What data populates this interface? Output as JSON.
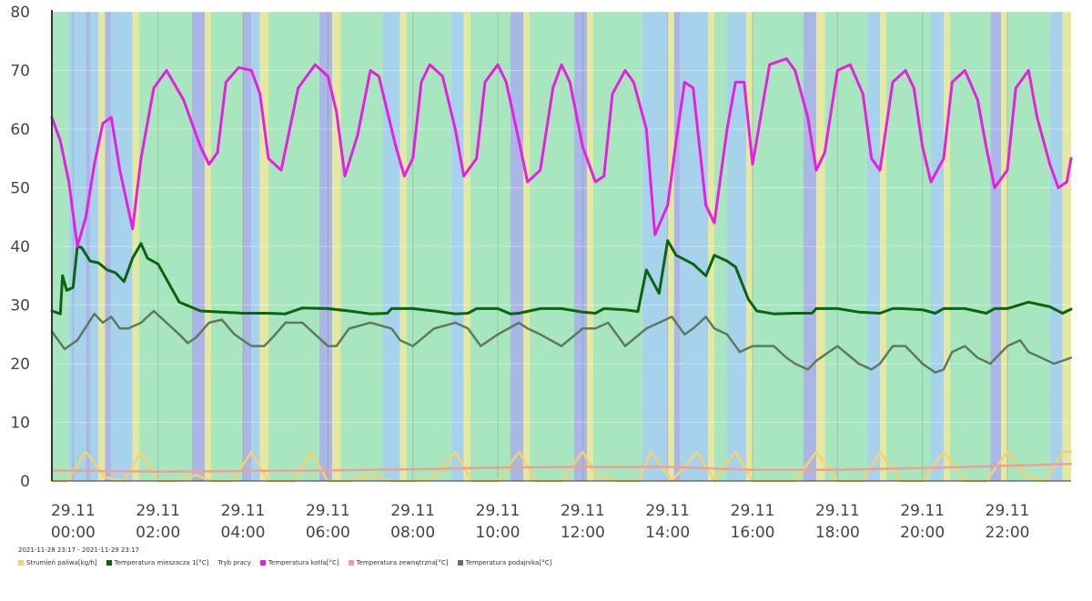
{
  "chart_data": {
    "type": "line",
    "title": "",
    "date_range": "2021-11-28 23:17 - 2021-11-29 23:17",
    "xlabel": "",
    "ylabel": "",
    "ylim": [
      0,
      80
    ],
    "xlim_hours": [
      -0.5,
      23.5
    ],
    "y_ticks": [
      "0",
      "10",
      "20",
      "30",
      "40",
      "50",
      "60",
      "70",
      "80"
    ],
    "x_ticks": [
      {
        "hour": 0,
        "day": "29.11",
        "time": "00:00"
      },
      {
        "hour": 2,
        "day": "29.11",
        "time": "02:00"
      },
      {
        "hour": 4,
        "day": "29.11",
        "time": "04:00"
      },
      {
        "hour": 6,
        "day": "29.11",
        "time": "06:00"
      },
      {
        "hour": 8,
        "day": "29.11",
        "time": "08:00"
      },
      {
        "hour": 10,
        "day": "29.11",
        "time": "10:00"
      },
      {
        "hour": 12,
        "day": "29.11",
        "time": "12:00"
      },
      {
        "hour": 14,
        "day": "29.11",
        "time": "14:00"
      },
      {
        "hour": 16,
        "day": "29.11",
        "time": "16:00"
      },
      {
        "hour": 18,
        "day": "29.11",
        "time": "18:00"
      },
      {
        "hour": 20,
        "day": "29.11",
        "time": "20:00"
      },
      {
        "hour": 22,
        "day": "29.11",
        "time": "22:00"
      }
    ],
    "mode_colors": {
      "work": "#a8e6bf",
      "idle": "#a7d2ec",
      "ignition": "#e6e8a0",
      "pause": "#a9b6e6"
    },
    "work_mode_bands": [
      {
        "start": -0.5,
        "end": -0.1,
        "mode": "work"
      },
      {
        "start": -0.1,
        "end": 0.3,
        "mode": "idle"
      },
      {
        "start": 0.3,
        "end": 0.4,
        "mode": "pause"
      },
      {
        "start": 0.4,
        "end": 0.6,
        "mode": "idle"
      },
      {
        "start": 0.6,
        "end": 0.75,
        "mode": "ignition"
      },
      {
        "start": 0.75,
        "end": 0.9,
        "mode": "pause"
      },
      {
        "start": 0.9,
        "end": 1.4,
        "mode": "idle"
      },
      {
        "start": 1.4,
        "end": 1.55,
        "mode": "ignition"
      },
      {
        "start": 1.55,
        "end": 2.8,
        "mode": "work"
      },
      {
        "start": 2.8,
        "end": 3.1,
        "mode": "pause"
      },
      {
        "start": 3.1,
        "end": 3.25,
        "mode": "ignition"
      },
      {
        "start": 3.25,
        "end": 4.0,
        "mode": "work"
      },
      {
        "start": 4.0,
        "end": 4.2,
        "mode": "pause"
      },
      {
        "start": 4.2,
        "end": 4.4,
        "mode": "idle"
      },
      {
        "start": 4.4,
        "end": 4.6,
        "mode": "ignition"
      },
      {
        "start": 4.6,
        "end": 5.8,
        "mode": "work"
      },
      {
        "start": 5.8,
        "end": 6.1,
        "mode": "pause"
      },
      {
        "start": 6.1,
        "end": 6.3,
        "mode": "ignition"
      },
      {
        "start": 6.3,
        "end": 7.3,
        "mode": "work"
      },
      {
        "start": 7.3,
        "end": 7.7,
        "mode": "idle"
      },
      {
        "start": 7.7,
        "end": 7.85,
        "mode": "ignition"
      },
      {
        "start": 7.85,
        "end": 8.9,
        "mode": "work"
      },
      {
        "start": 8.9,
        "end": 9.2,
        "mode": "idle"
      },
      {
        "start": 9.2,
        "end": 9.35,
        "mode": "ignition"
      },
      {
        "start": 9.35,
        "end": 10.3,
        "mode": "work"
      },
      {
        "start": 10.3,
        "end": 10.6,
        "mode": "pause"
      },
      {
        "start": 10.6,
        "end": 10.75,
        "mode": "ignition"
      },
      {
        "start": 10.75,
        "end": 11.8,
        "mode": "work"
      },
      {
        "start": 11.8,
        "end": 12.1,
        "mode": "pause"
      },
      {
        "start": 12.1,
        "end": 12.25,
        "mode": "ignition"
      },
      {
        "start": 12.25,
        "end": 13.4,
        "mode": "work"
      },
      {
        "start": 13.4,
        "end": 14.0,
        "mode": "idle"
      },
      {
        "start": 14.0,
        "end": 14.15,
        "mode": "ignition"
      },
      {
        "start": 14.15,
        "end": 14.3,
        "mode": "pause"
      },
      {
        "start": 14.3,
        "end": 14.5,
        "mode": "idle"
      },
      {
        "start": 14.5,
        "end": 14.95,
        "mode": "idle"
      },
      {
        "start": 14.95,
        "end": 15.1,
        "mode": "ignition"
      },
      {
        "start": 15.1,
        "end": 15.4,
        "mode": "work"
      },
      {
        "start": 15.4,
        "end": 15.85,
        "mode": "idle"
      },
      {
        "start": 15.85,
        "end": 16.0,
        "mode": "ignition"
      },
      {
        "start": 16.0,
        "end": 17.2,
        "mode": "work"
      },
      {
        "start": 17.2,
        "end": 17.5,
        "mode": "pause"
      },
      {
        "start": 17.5,
        "end": 17.7,
        "mode": "ignition"
      },
      {
        "start": 17.7,
        "end": 18.7,
        "mode": "work"
      },
      {
        "start": 18.7,
        "end": 19.0,
        "mode": "idle"
      },
      {
        "start": 19.0,
        "end": 19.15,
        "mode": "ignition"
      },
      {
        "start": 19.15,
        "end": 20.2,
        "mode": "work"
      },
      {
        "start": 20.2,
        "end": 20.5,
        "mode": "idle"
      },
      {
        "start": 20.5,
        "end": 20.65,
        "mode": "ignition"
      },
      {
        "start": 20.65,
        "end": 21.6,
        "mode": "work"
      },
      {
        "start": 21.6,
        "end": 21.85,
        "mode": "pause"
      },
      {
        "start": 21.85,
        "end": 22.0,
        "mode": "ignition"
      },
      {
        "start": 22.0,
        "end": 23.0,
        "mode": "work"
      },
      {
        "start": 23.0,
        "end": 23.3,
        "mode": "idle"
      },
      {
        "start": 23.3,
        "end": 23.5,
        "mode": "ignition"
      }
    ],
    "series": [
      {
        "name": "Strumień paliwa[kg/h]",
        "color": "#f7d070",
        "x": [
          -0.5,
          -0.15,
          0.3,
          0.75,
          1.2,
          1.6,
          2.0,
          2.4,
          2.9,
          3.3,
          3.75,
          4.2,
          4.6,
          5.2,
          5.6,
          6.0,
          6.5,
          7.0,
          7.5,
          8.0,
          8.5,
          9.0,
          9.4,
          10.0,
          10.5,
          10.9,
          11.5,
          12.0,
          12.3,
          12.8,
          13.3,
          13.6,
          14.1,
          14.7,
          15.1,
          15.6,
          16.0,
          16.5,
          17.0,
          17.5,
          18.0,
          18.6,
          19.0,
          19.5,
          20.0,
          20.5,
          21.0,
          21.5,
          22.0,
          22.4,
          22.9,
          23.3,
          23.5
        ],
        "y": [
          0,
          0,
          5,
          0.6,
          0,
          5,
          0,
          0,
          1,
          0,
          0,
          5,
          0,
          0,
          5,
          0,
          0,
          1,
          0,
          0,
          0.5,
          5,
          0,
          0,
          5,
          0,
          0,
          5,
          1,
          0,
          0,
          5,
          0,
          5,
          0,
          5,
          0,
          0,
          0,
          5,
          0,
          0,
          5,
          0,
          0,
          5,
          0,
          0,
          5,
          1,
          0,
          5,
          5
        ]
      },
      {
        "name": "Temperatura mieszacza 1[°C]",
        "color": "#0a6410",
        "x": [
          -0.5,
          -0.3,
          -0.25,
          -0.15,
          0.0,
          0.1,
          0.2,
          0.4,
          0.6,
          0.8,
          1.0,
          1.2,
          1.4,
          1.6,
          1.75,
          2.0,
          2.5,
          3.0,
          4.0,
          4.3,
          4.6,
          5.0,
          5.4,
          6.0,
          6.5,
          7.0,
          7.4,
          7.5,
          8.0,
          8.5,
          9.0,
          9.3,
          9.5,
          10.0,
          10.3,
          10.5,
          11.0,
          11.5,
          12.0,
          12.3,
          12.5,
          13.0,
          13.3,
          13.5,
          13.8,
          14.0,
          14.2,
          14.6,
          14.9,
          15.1,
          15.4,
          15.6,
          15.9,
          16.1,
          16.5,
          17.0,
          17.4,
          17.5,
          18.0,
          18.5,
          19.0,
          19.3,
          19.5,
          20.0,
          20.3,
          20.5,
          21.0,
          21.5,
          21.7,
          22.0,
          22.5,
          23.0,
          23.3,
          23.5
        ],
        "y": [
          29,
          28.5,
          35,
          32.5,
          33,
          40,
          39.8,
          37.5,
          37.2,
          36,
          35.5,
          34,
          38,
          40.5,
          38,
          37,
          30.5,
          29,
          28.6,
          28.6,
          28.6,
          28.5,
          29.5,
          29.4,
          29,
          28.5,
          28.6,
          29.4,
          29.4,
          29,
          28.5,
          28.6,
          29.4,
          29.4,
          28.5,
          28.6,
          29.4,
          29.4,
          28.8,
          28.6,
          29.4,
          29.2,
          28.9,
          36,
          32,
          41,
          38.5,
          37,
          35,
          38.5,
          37.5,
          36.5,
          31,
          29,
          28.5,
          28.6,
          28.6,
          29.4,
          29.4,
          28.8,
          28.6,
          29.4,
          29.4,
          29.2,
          28.6,
          29.4,
          29.4,
          28.6,
          29.4,
          29.4,
          30.5,
          29.7,
          28.6,
          29.3
        ]
      },
      {
        "name": "Temperatura kotła[°C]",
        "color": "#e81ee0",
        "x": [
          -0.5,
          -0.3,
          -0.1,
          0.1,
          0.3,
          0.5,
          0.7,
          0.9,
          1.1,
          1.4,
          1.6,
          1.9,
          2.2,
          2.6,
          3.0,
          3.2,
          3.4,
          3.6,
          3.9,
          4.2,
          4.4,
          4.6,
          4.9,
          5.3,
          5.7,
          6.0,
          6.2,
          6.4,
          6.7,
          7.0,
          7.2,
          7.6,
          7.8,
          8.0,
          8.2,
          8.4,
          8.7,
          9.0,
          9.2,
          9.5,
          9.7,
          10.0,
          10.2,
          10.5,
          10.7,
          11.0,
          11.3,
          11.5,
          11.7,
          12.0,
          12.3,
          12.5,
          12.7,
          13.0,
          13.2,
          13.5,
          13.7,
          14.0,
          14.2,
          14.4,
          14.6,
          14.9,
          15.1,
          15.4,
          15.6,
          15.8,
          16.0,
          16.4,
          16.8,
          17.0,
          17.3,
          17.5,
          17.7,
          18.0,
          18.3,
          18.6,
          18.8,
          19.0,
          19.3,
          19.6,
          19.8,
          20.0,
          20.2,
          20.5,
          20.7,
          21.0,
          21.3,
          21.5,
          21.7,
          22.0,
          22.2,
          22.5,
          22.7,
          23.0,
          23.2,
          23.4,
          23.5
        ],
        "y": [
          62,
          58,
          51,
          40,
          45,
          54,
          61,
          62,
          53,
          43,
          55,
          67,
          70,
          65,
          57,
          54,
          56,
          68,
          70.5,
          70,
          66,
          55,
          53,
          67,
          71,
          69,
          63,
          52,
          59,
          70,
          69,
          57,
          52,
          55,
          68,
          71,
          69,
          60,
          52,
          55,
          68,
          71,
          68,
          58,
          51,
          53,
          67,
          71,
          68,
          57,
          51,
          52,
          66,
          70,
          68,
          60,
          42,
          47,
          58,
          68,
          67,
          47,
          44,
          60,
          68,
          68,
          54,
          71,
          72,
          70,
          62,
          53,
          56,
          70,
          71,
          66,
          55,
          53,
          68,
          70,
          67,
          57,
          51,
          55,
          68,
          70,
          65,
          57,
          50,
          53,
          67,
          70,
          62,
          54,
          50,
          51,
          55
        ]
      },
      {
        "name": "Temperatura zewnętrzna[°C]",
        "color": "#f0a090",
        "x": [
          -0.5,
          2.0,
          4.0,
          6.0,
          8.0,
          10.0,
          12.0,
          14.0,
          16.0,
          18.0,
          20.0,
          22.0,
          23.5
        ],
        "y": [
          1.8,
          1.6,
          1.7,
          1.8,
          2.0,
          2.3,
          2.4,
          2.4,
          1.9,
          1.9,
          2.2,
          2.6,
          2.9
        ]
      },
      {
        "name": "Temperatura podajnika[°C]",
        "color": "#5e7a5e",
        "x": [
          -0.5,
          -0.2,
          0.1,
          0.5,
          0.7,
          0.9,
          1.1,
          1.3,
          1.6,
          1.9,
          2.2,
          2.5,
          2.7,
          2.9,
          3.2,
          3.5,
          3.8,
          4.2,
          4.5,
          4.7,
          5.0,
          5.4,
          5.7,
          6.0,
          6.2,
          6.5,
          7.0,
          7.5,
          7.7,
          8.0,
          8.5,
          9.0,
          9.3,
          9.6,
          10.0,
          10.5,
          10.7,
          11.0,
          11.5,
          12.0,
          12.3,
          12.6,
          13.0,
          13.5,
          13.8,
          14.1,
          14.4,
          14.6,
          14.9,
          15.1,
          15.4,
          15.7,
          16.0,
          16.5,
          16.8,
          17.0,
          17.3,
          17.5,
          18.0,
          18.5,
          18.8,
          19.0,
          19.3,
          19.6,
          20.0,
          20.3,
          20.5,
          20.7,
          21.0,
          21.3,
          21.6,
          22.0,
          22.3,
          22.5,
          22.8,
          23.1,
          23.5
        ],
        "y": [
          25.5,
          22.5,
          24,
          28.5,
          27,
          28,
          26,
          26,
          27,
          29,
          27,
          25,
          23.5,
          24.5,
          27,
          27.5,
          25,
          23,
          23,
          24.5,
          27,
          27,
          25,
          23,
          23,
          26,
          27,
          26,
          24,
          23,
          26,
          27,
          26,
          23,
          25,
          27,
          26,
          25,
          23,
          26,
          26,
          27,
          23,
          26,
          27,
          28,
          25,
          26,
          28,
          26,
          25,
          22,
          23,
          23,
          21,
          20,
          19,
          20.5,
          23,
          20,
          19,
          20,
          23,
          23,
          20,
          18.5,
          19,
          22,
          23,
          21,
          20,
          23,
          24,
          22,
          21,
          20,
          21
        ]
      }
    ],
    "legend": [
      {
        "label": "Strumień paliwa[kg/h]",
        "color": "#f7d070"
      },
      {
        "label": "Temperatura mieszacza 1[°C]",
        "color": "#0a6410"
      },
      {
        "label": "Tryb pracy",
        "color": ""
      },
      {
        "label": "Temperatura kotła[°C]",
        "color": "#e81ee0"
      },
      {
        "label": "Temperatura zewnętrzna[°C]",
        "color": "#f0a090"
      },
      {
        "label": "Temperatura podajnika[°C]",
        "color": "#5e7a5e"
      }
    ]
  }
}
